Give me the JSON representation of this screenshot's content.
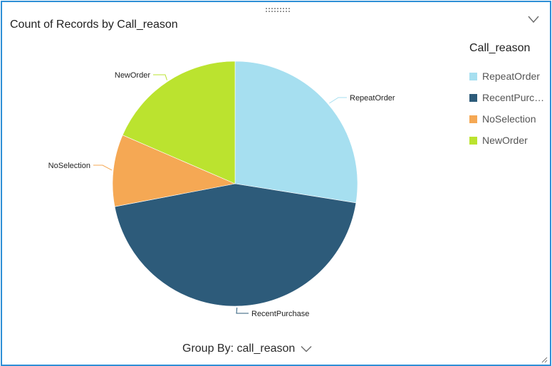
{
  "header": {
    "title": "Count of Records by Call_reason"
  },
  "legend": {
    "title": "Call_reason",
    "items": [
      {
        "label": "RepeatOrder",
        "color": "#a6dff0"
      },
      {
        "label": "RecentPurc…",
        "color": "#2d5b7a"
      },
      {
        "label": "NoSelection",
        "color": "#f5a854"
      },
      {
        "label": "NewOrder",
        "color": "#bbe32f"
      }
    ]
  },
  "footer": {
    "group_by_label": "Group By: call_reason"
  },
  "icons": {
    "collapse": "chevron-down-icon",
    "drag": "drag-handle-icon",
    "group_by": "chevron-down-icon",
    "resize": "resize-grip-icon"
  },
  "chart_data": {
    "type": "pie",
    "title": "Count of Records by Call_reason",
    "legend_title": "Call_reason",
    "legend_position": "right",
    "slices": [
      {
        "label": "RepeatOrder",
        "value": 27.5,
        "color": "#a6dff0"
      },
      {
        "label": "RecentPurchase",
        "value": 44.5,
        "color": "#2d5b7a"
      },
      {
        "label": "NoSelection",
        "value": 9.5,
        "color": "#f5a854"
      },
      {
        "label": "NewOrder",
        "value": 18.5,
        "color": "#bbe32f"
      }
    ]
  }
}
